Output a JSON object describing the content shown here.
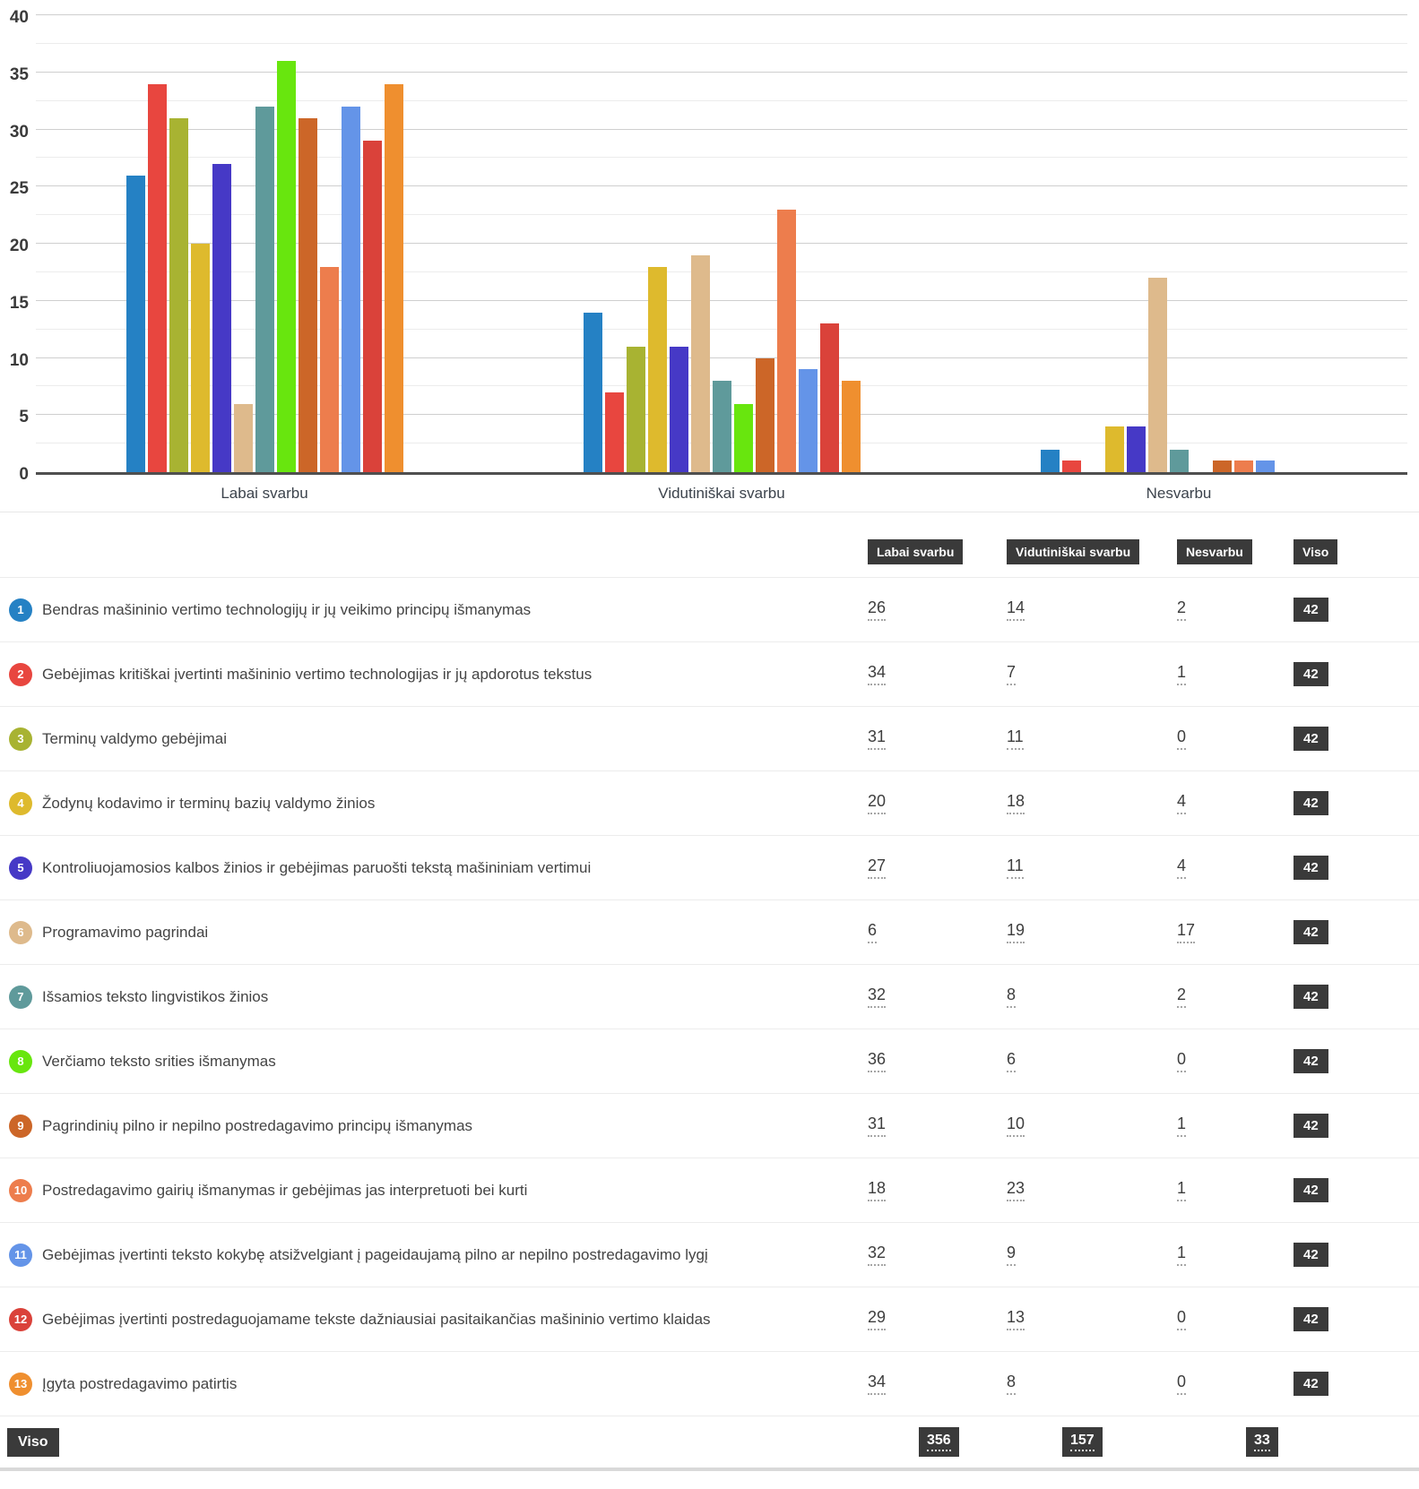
{
  "chart_data": {
    "type": "bar",
    "title": "",
    "categories": [
      "Labai svarbu",
      "Vidutiniškai svarbu",
      "Nesvarbu"
    ],
    "series": [
      {
        "name": "Bendras mašininio vertimo technologijų ir jų veikimo principų išmanymas",
        "color": "#2581c4",
        "values": [
          26,
          14,
          2
        ],
        "total": 42
      },
      {
        "name": "Gebėjimas kritiškai įvertinti mašininio vertimo technologijas ir jų apdorotus tekstus",
        "color": "#e8463f",
        "values": [
          34,
          7,
          1
        ],
        "total": 42
      },
      {
        "name": "Terminų valdymo gebėjimai",
        "color": "#a8b332",
        "values": [
          31,
          11,
          0
        ],
        "total": 42
      },
      {
        "name": "Žodynų kodavimo ir terminų bazių valdymo žinios",
        "color": "#deba2d",
        "values": [
          20,
          18,
          4
        ],
        "total": 42
      },
      {
        "name": "Kontroliuojamosios kalbos žinios ir gebėjimas paruošti tekstą mašininiam vertimui",
        "color": "#4639c6",
        "values": [
          27,
          11,
          4
        ],
        "total": 42
      },
      {
        "name": "Programavimo pagrindai",
        "color": "#deba8c",
        "values": [
          6,
          19,
          17
        ],
        "total": 42
      },
      {
        "name": "Išsamios teksto lingvistikos žinios",
        "color": "#5f9a9b",
        "values": [
          32,
          8,
          2
        ],
        "total": 42
      },
      {
        "name": "Verčiamo teksto srities išmanymas",
        "color": "#68e60e",
        "values": [
          36,
          6,
          0
        ],
        "total": 42
      },
      {
        "name": "Pagrindinių pilno ir nepilno postredagavimo principų išmanymas",
        "color": "#cc6628",
        "values": [
          31,
          10,
          1
        ],
        "total": 42
      },
      {
        "name": "Postredagavimo gairių išmanymas ir gebėjimas jas interpretuoti bei kurti",
        "color": "#ed7d4d",
        "values": [
          18,
          23,
          1
        ],
        "total": 42
      },
      {
        "name": "Gebėjimas įvertinti teksto kokybę atsižvelgiant į pageidaujamą pilno ar nepilno postredagavimo lygį",
        "color": "#6494e8",
        "values": [
          32,
          9,
          1
        ],
        "total": 42
      },
      {
        "name": "Gebėjimas įvertinti postredaguojamame tekste dažniausiai pasitaikančias mašininio vertimo klaidas",
        "color": "#da423a",
        "values": [
          29,
          13,
          0
        ],
        "total": 42
      },
      {
        "name": "Įgyta postredagavimo patirtis",
        "color": "#ef8f2f",
        "values": [
          34,
          8,
          0
        ],
        "total": 42
      }
    ],
    "ylim": [
      0,
      40
    ],
    "yticks": [
      0,
      5,
      10,
      15,
      20,
      25,
      30,
      35,
      40
    ],
    "minor_gridline_step": 2.5,
    "xlabel": "",
    "ylabel": "",
    "grid": "horizontal",
    "legend_position": "none"
  },
  "table": {
    "column_headers": [
      "Labai svarbu",
      "Vidutiniškai svarbu",
      "Nesvarbu",
      "Viso"
    ],
    "footer": {
      "label": "Viso",
      "totals": [
        "356",
        "157",
        "33"
      ]
    }
  }
}
